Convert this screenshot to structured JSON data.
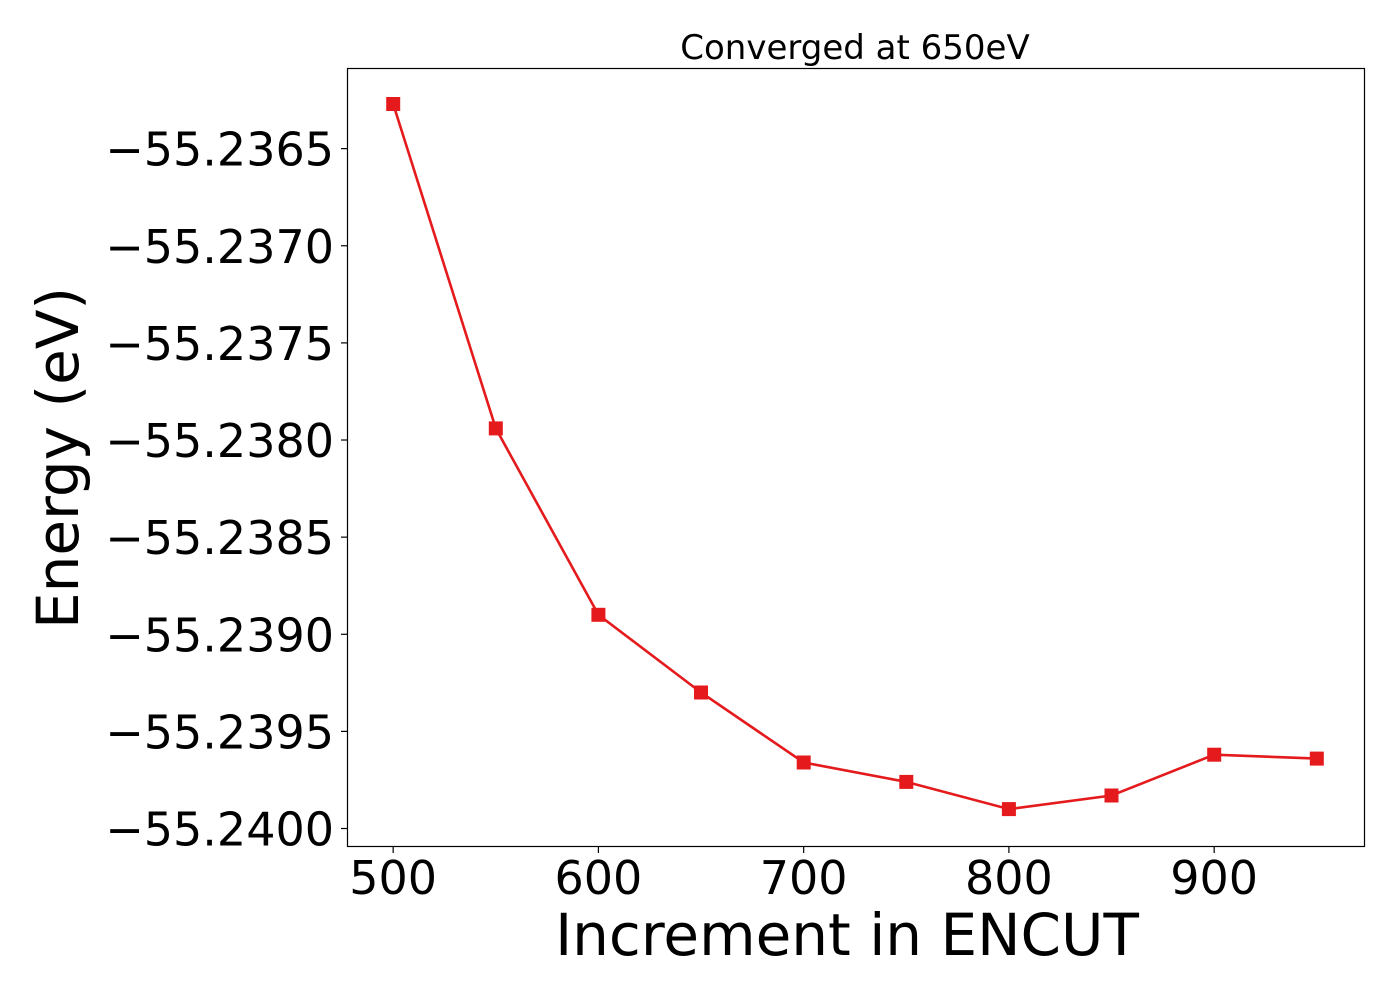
{
  "chart_data": {
    "type": "line",
    "title": "Converged at 650eV",
    "xlabel": "Increment in ENCUT",
    "ylabel": "Energy (eV)",
    "x": [
      500,
      550,
      600,
      650,
      700,
      750,
      800,
      850,
      900,
      950
    ],
    "series": [
      {
        "values": [
          -55.23627,
          -55.23794,
          -55.2389,
          -55.2393,
          -55.23966,
          -55.23976,
          -55.2399,
          -55.23983,
          -55.23962,
          -55.23964
        ]
      }
    ],
    "xlim": [
      478,
      973
    ],
    "ylim": [
      -55.24009,
      -55.23609
    ],
    "xticks": [
      500,
      600,
      700,
      800,
      900
    ],
    "xtick_labels": [
      "500",
      "600",
      "700",
      "800",
      "900"
    ],
    "yticks": [
      -55.2365,
      -55.237,
      -55.2375,
      -55.238,
      -55.2385,
      -55.239,
      -55.2395,
      -55.24
    ],
    "ytick_labels": [
      "−55.2365",
      "−55.2370",
      "−55.2375",
      "−55.2380",
      "−55.2385",
      "−55.2390",
      "−55.2395",
      "−55.2400"
    ],
    "grid": false,
    "line_color": "#e41a1c",
    "marker": "square"
  }
}
